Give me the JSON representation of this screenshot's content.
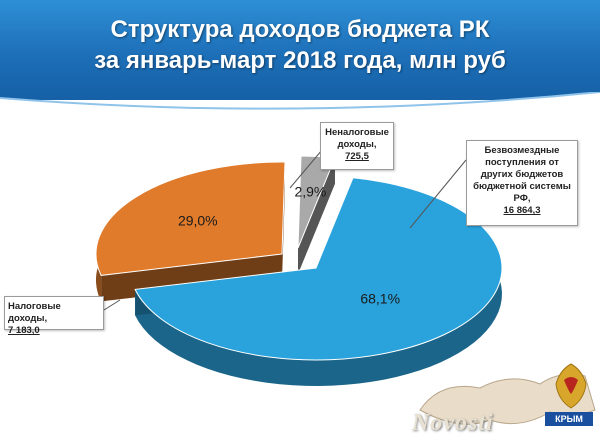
{
  "header": {
    "title_line1": "Структура доходов бюджета РК",
    "title_line2": "за январь-март 2018 года, млн руб"
  },
  "chart_data": {
    "type": "pie",
    "title": "Структура доходов бюджета РК за январь-март 2018 года, млн руб",
    "slices": [
      {
        "name": "Безвозмездные поступления от других бюджетов бюджетной системы РФ,",
        "value": 16864.3,
        "value_label": "16 864,3",
        "percent_label": "68,1%",
        "color": "#2aa3dd"
      },
      {
        "name": "Налоговые доходы,",
        "value": 7183.0,
        "value_label": "7 183,0",
        "percent_label": "29,0%",
        "color": "#e07b2c"
      },
      {
        "name": "Неналоговые доходы,",
        "value": 725.5,
        "value_label": "725,5",
        "percent_label": "2,9%",
        "color": "#a9a9a9"
      }
    ]
  },
  "watermark": {
    "site": "Novosti",
    "brand": "КРЫМ"
  },
  "colors": {
    "header_bg": "#1d6fb8",
    "pie_blue": "#2aa3dd",
    "pie_orange": "#e07b2c",
    "pie_gray": "#a9a9a9"
  }
}
